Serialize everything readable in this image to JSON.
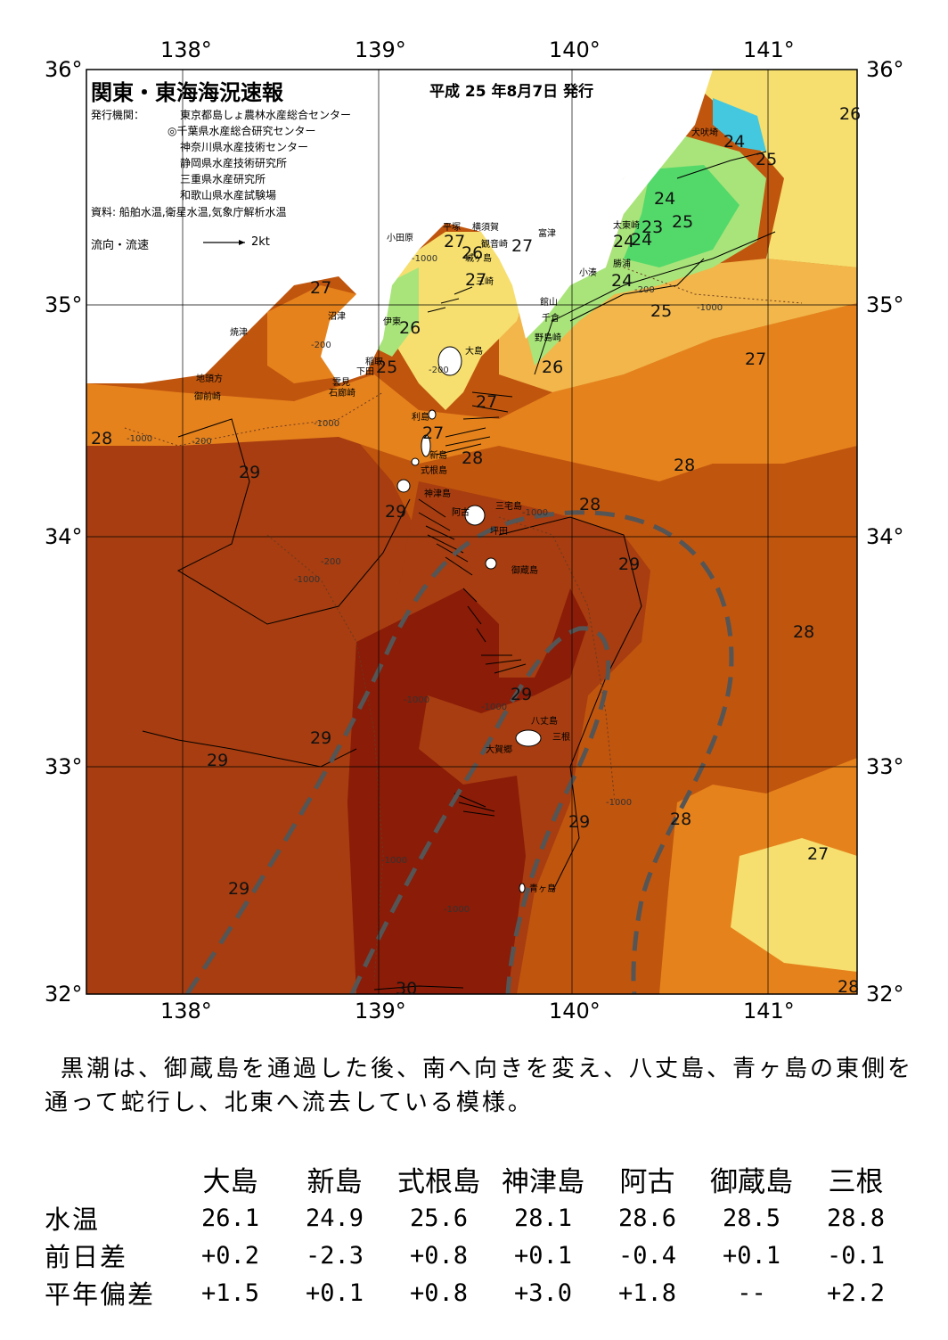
{
  "map": {
    "title": "関東・東海海況速報",
    "date": "平成 25 年8月7日 発行",
    "publisher_label": "発行機関：",
    "publishers": [
      "東京都島しょ農林水産総合センター",
      "◎千葉県水産総合研究センター",
      "神奈川県水産技術センター",
      "静岡県水産技術研究所",
      "三重県水産研究所",
      "和歌山県水産試験場"
    ],
    "source": "資料: 船舶水温,衛星水温,気象庁解析水温",
    "legend_label": "流向・流速",
    "legend_speed": "2kt",
    "lon_ticks": [
      "138°",
      "139°",
      "140°",
      "141°"
    ],
    "lat_ticks": [
      "36°",
      "35°",
      "34°",
      "33°",
      "32°"
    ],
    "isotherm_labels": [
      {
        "t": "26"
      },
      {
        "t": "24"
      },
      {
        "t": "25"
      },
      {
        "t": "24"
      },
      {
        "t": "25"
      },
      {
        "t": "23"
      },
      {
        "t": "24"
      },
      {
        "t": "24"
      },
      {
        "t": "27"
      },
      {
        "t": "27"
      },
      {
        "t": "26"
      },
      {
        "t": "27"
      },
      {
        "t": "27"
      },
      {
        "t": "24"
      },
      {
        "t": "25"
      },
      {
        "t": "26"
      },
      {
        "t": "25"
      },
      {
        "t": "26"
      },
      {
        "t": "27"
      },
      {
        "t": "27"
      },
      {
        "t": "27"
      },
      {
        "t": "28"
      },
      {
        "t": "28"
      },
      {
        "t": "29"
      },
      {
        "t": "28"
      },
      {
        "t": "29"
      },
      {
        "t": "28"
      },
      {
        "t": "29"
      },
      {
        "t": "29"
      },
      {
        "t": "29"
      },
      {
        "t": "29"
      },
      {
        "t": "28"
      },
      {
        "t": "27"
      },
      {
        "t": "29"
      },
      {
        "t": "29"
      },
      {
        "t": "30"
      },
      {
        "t": "28"
      }
    ],
    "depth_labels": [
      "-1000",
      "-200",
      "-1000",
      "-200",
      "-1000",
      "-200",
      "-1000",
      "-200",
      "-1000",
      "-1000",
      "-1000",
      "-1000",
      "-200",
      "-1000",
      "-1000",
      "-1000"
    ],
    "places": [
      "犬吠埼",
      "太東崎",
      "勝浦",
      "小湊",
      "富津",
      "横須賀",
      "観音崎",
      "平塚",
      "小田原",
      "城ヶ島",
      "三崎",
      "館山",
      "千倉",
      "野島崎",
      "沼津",
      "伊東",
      "稲取",
      "下田",
      "雲見",
      "石廊崎",
      "焼津",
      "地頭方",
      "御前崎",
      "大島",
      "利島",
      "新島",
      "式根島",
      "神津島",
      "阿古",
      "三宅島",
      "坪田",
      "御蔵島",
      "八丈島",
      "三根",
      "大賀郷",
      "青ヶ島"
    ],
    "colors": {
      "temp30": "#8a1c08",
      "temp29": "#a73d10",
      "temp28": "#c0550e",
      "temp27": "#e6821c",
      "temp26": "#f2b64a",
      "temp25": "#f6df6e",
      "temp24": "#a9e47a",
      "temp23": "#52d96a",
      "temp22": "#44c8e0",
      "land": "#ffffff",
      "kuroshio": "#555555"
    }
  },
  "description": "黒潮は、御蔵島を通過した後、南へ向きを変え、八丈島、青ヶ島の東側を通って蛇行し、北東へ流去している模様。",
  "table": {
    "columns": [
      "大島",
      "新島",
      "式根島",
      "神津島",
      "阿古",
      "御蔵島",
      "三根"
    ],
    "rows": [
      {
        "label": "水温",
        "values": [
          "26.1",
          "24.9",
          "25.6",
          "28.1",
          "28.6",
          "28.5",
          "28.8"
        ]
      },
      {
        "label": "前日差",
        "values": [
          "+0.2",
          "-2.3",
          "+0.8",
          "+0.1",
          "-0.4",
          "+0.1",
          "-0.1"
        ]
      },
      {
        "label": "平年偏差",
        "values": [
          "+1.5",
          "+0.1",
          "+0.8",
          "+3.0",
          "+1.8",
          "--",
          "+2.2"
        ]
      }
    ]
  }
}
